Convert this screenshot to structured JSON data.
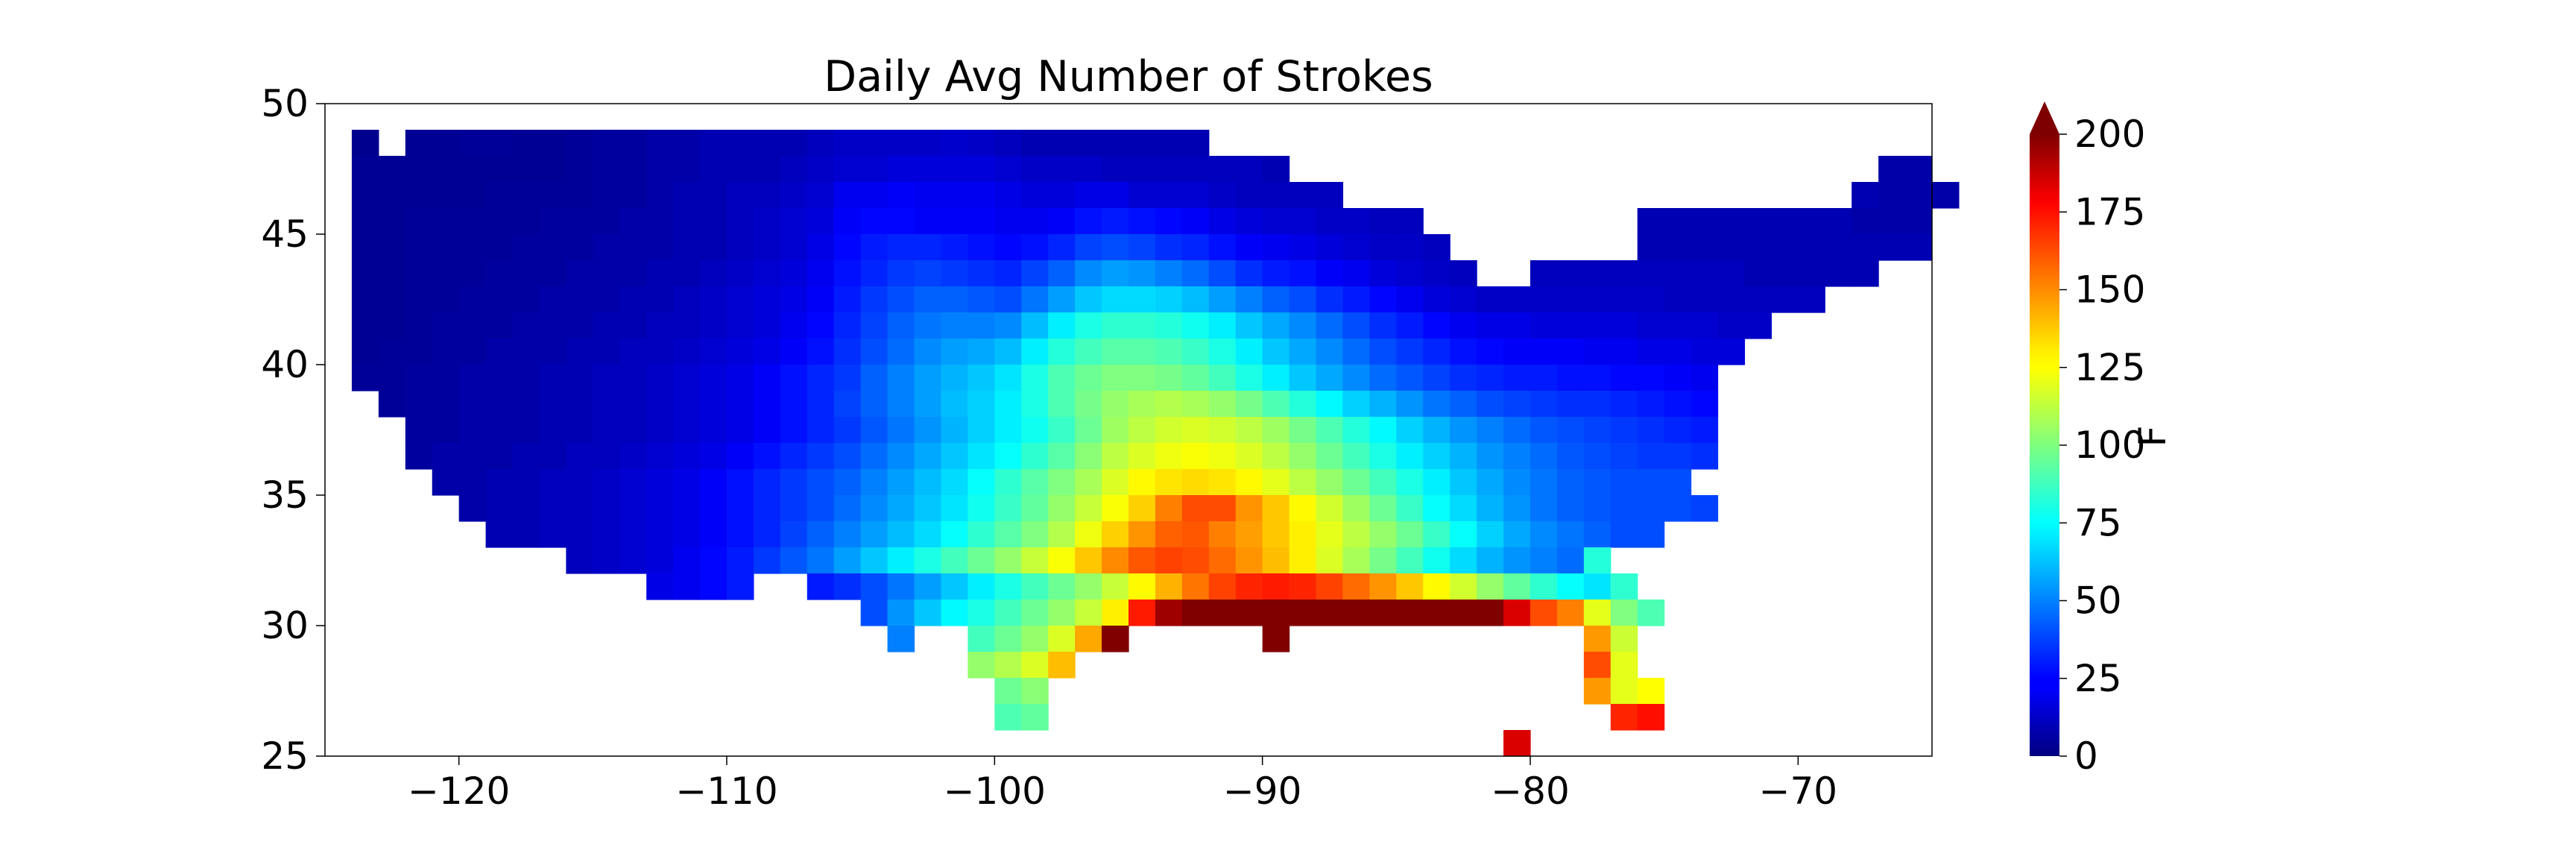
{
  "chart_data": {
    "type": "heatmap",
    "title": "Daily Avg Number of Strokes",
    "xlabel": "",
    "ylabel": "",
    "xlim": [
      -125,
      -65
    ],
    "ylim": [
      25,
      50
    ],
    "x_ticks": [
      -120,
      -110,
      -100,
      -90,
      -80,
      -70
    ],
    "x_tick_labels": [
      "−120",
      "−110",
      "−100",
      "−90",
      "−80",
      "−70"
    ],
    "y_ticks": [
      25,
      30,
      35,
      40,
      45,
      50
    ],
    "y_tick_labels": [
      "25",
      "30",
      "35",
      "40",
      "45",
      "50"
    ],
    "grid": false,
    "cell_size_deg": 1,
    "colorbar": {
      "label": "F",
      "colormap": "jet",
      "range": [
        0,
        200
      ],
      "ticks": [
        0,
        25,
        50,
        75,
        100,
        125,
        150,
        175,
        200
      ],
      "tick_labels": [
        "0",
        "25",
        "50",
        "75",
        "100",
        "125",
        "150",
        "175",
        "200"
      ],
      "extend": "max"
    },
    "rows": [
      {
        "lat": 48.5,
        "lon_start": -124,
        "values": [
          3,
          null,
          4,
          4,
          5,
          5,
          4,
          4,
          5,
          6,
          6,
          8,
          8,
          10,
          10,
          10,
          10,
          12,
          14,
          14,
          14,
          14,
          15,
          14,
          12,
          10,
          10,
          10,
          10,
          10,
          10,
          10
        ]
      },
      {
        "lat": 47.5,
        "lon_start": -124,
        "values": [
          4,
          4,
          4,
          4,
          4,
          4,
          4,
          4,
          5,
          6,
          6,
          8,
          8,
          10,
          10,
          10,
          12,
          14,
          16,
          16,
          18,
          18,
          18,
          18,
          16,
          14,
          14,
          14,
          12,
          12,
          12,
          12,
          12,
          12,
          10,
          null,
          null,
          null,
          null,
          null,
          null,
          null,
          null,
          null,
          null,
          null,
          null,
          null,
          null,
          null,
          null,
          null,
          null,
          null,
          null,
          null,
          null,
          8,
          8
        ]
      },
      {
        "lat": 46.5,
        "lon_start": -124,
        "values": [
          4,
          4,
          4,
          4,
          4,
          5,
          5,
          5,
          5,
          6,
          6,
          8,
          10,
          10,
          12,
          12,
          14,
          16,
          22,
          22,
          24,
          22,
          22,
          22,
          20,
          18,
          18,
          20,
          20,
          16,
          16,
          16,
          14,
          12,
          12,
          12,
          12,
          null,
          null,
          null,
          null,
          null,
          null,
          null,
          null,
          null,
          null,
          null,
          null,
          null,
          null,
          null,
          null,
          null,
          null,
          null,
          10,
          8,
          8,
          8
        ]
      },
      {
        "lat": 45.5,
        "lon_start": -124,
        "values": [
          4,
          4,
          5,
          5,
          5,
          5,
          5,
          6,
          6,
          6,
          8,
          8,
          10,
          10,
          12,
          14,
          16,
          18,
          24,
          26,
          26,
          24,
          24,
          24,
          22,
          22,
          24,
          28,
          30,
          28,
          26,
          24,
          20,
          18,
          16,
          16,
          14,
          14,
          12,
          12,
          null,
          null,
          null,
          null,
          null,
          null,
          null,
          null,
          10,
          10,
          10,
          10,
          10,
          10,
          10,
          10,
          8,
          8,
          8
        ]
      },
      {
        "lat": 44.5,
        "lon_start": -124,
        "values": [
          4,
          4,
          5,
          5,
          5,
          5,
          6,
          6,
          6,
          8,
          8,
          8,
          10,
          10,
          12,
          14,
          16,
          20,
          26,
          30,
          32,
          32,
          30,
          28,
          26,
          28,
          32,
          38,
          40,
          38,
          34,
          32,
          28,
          24,
          22,
          20,
          18,
          16,
          14,
          14,
          12,
          null,
          null,
          null,
          null,
          null,
          null,
          null,
          10,
          10,
          10,
          10,
          10,
          10,
          10,
          10,
          10,
          10,
          10
        ]
      },
      {
        "lat": 43.5,
        "lon_start": -124,
        "values": [
          4,
          4,
          5,
          5,
          5,
          6,
          6,
          6,
          8,
          8,
          8,
          10,
          10,
          12,
          14,
          16,
          18,
          22,
          28,
          32,
          36,
          38,
          36,
          34,
          32,
          38,
          44,
          52,
          56,
          54,
          50,
          46,
          40,
          34,
          30,
          28,
          24,
          22,
          18,
          16,
          14,
          12,
          null,
          null,
          12,
          12,
          12,
          12,
          12,
          12,
          12,
          12,
          10,
          10,
          10,
          10,
          10
        ]
      },
      {
        "lat": 42.5,
        "lon_start": -124,
        "values": [
          4,
          4,
          5,
          5,
          6,
          6,
          6,
          8,
          8,
          8,
          10,
          10,
          12,
          14,
          16,
          18,
          20,
          24,
          30,
          36,
          40,
          44,
          44,
          42,
          40,
          48,
          56,
          64,
          68,
          68,
          66,
          62,
          56,
          50,
          44,
          40,
          34,
          30,
          26,
          22,
          18,
          16,
          14,
          14,
          14,
          14,
          14,
          14,
          14,
          12,
          12,
          12,
          12,
          12,
          12
        ]
      },
      {
        "lat": 41.5,
        "lon_start": -124,
        "values": [
          4,
          4,
          5,
          6,
          6,
          6,
          8,
          8,
          8,
          10,
          10,
          12,
          12,
          14,
          16,
          18,
          22,
          26,
          32,
          38,
          44,
          48,
          50,
          50,
          52,
          62,
          72,
          80,
          84,
          84,
          82,
          78,
          72,
          64,
          58,
          52,
          46,
          40,
          34,
          30,
          26,
          22,
          20,
          20,
          18,
          18,
          18,
          18,
          16,
          16,
          16,
          14,
          14
        ]
      },
      {
        "lat": 40.5,
        "lon_start": -124,
        "values": [
          4,
          5,
          5,
          6,
          6,
          8,
          8,
          8,
          10,
          10,
          12,
          12,
          14,
          16,
          18,
          20,
          24,
          28,
          34,
          40,
          46,
          52,
          56,
          58,
          62,
          72,
          82,
          88,
          92,
          92,
          90,
          86,
          80,
          72,
          64,
          58,
          52,
          46,
          40,
          36,
          32,
          28,
          26,
          24,
          24,
          24,
          22,
          22,
          20,
          20,
          18,
          18
        ]
      },
      {
        "lat": 39.5,
        "lon_start": -124,
        "values": [
          5,
          5,
          6,
          6,
          8,
          8,
          8,
          10,
          10,
          12,
          12,
          14,
          16,
          18,
          20,
          24,
          28,
          32,
          36,
          44,
          50,
          56,
          60,
          64,
          70,
          80,
          90,
          96,
          100,
          100,
          98,
          94,
          88,
          80,
          72,
          64,
          58,
          52,
          46,
          42,
          38,
          34,
          32,
          30,
          30,
          28,
          28,
          26,
          26,
          24,
          22
        ]
      },
      {
        "lat": 38.5,
        "lon_start": -123,
        "values": [
          5,
          6,
          6,
          8,
          8,
          8,
          10,
          10,
          12,
          12,
          14,
          16,
          18,
          20,
          24,
          28,
          32,
          38,
          44,
          50,
          56,
          62,
          66,
          72,
          80,
          90,
          98,
          104,
          108,
          110,
          108,
          104,
          98,
          90,
          82,
          74,
          66,
          60,
          54,
          48,
          44,
          40,
          38,
          36,
          34,
          34,
          32,
          30,
          28,
          26
        ]
      },
      {
        "lat": 37.5,
        "lon_start": -122,
        "values": [
          6,
          6,
          8,
          8,
          8,
          10,
          10,
          12,
          12,
          14,
          16,
          18,
          20,
          24,
          28,
          32,
          36,
          42,
          48,
          54,
          60,
          66,
          72,
          78,
          86,
          96,
          106,
          112,
          116,
          118,
          116,
          112,
          106,
          98,
          90,
          82,
          74,
          66,
          60,
          54,
          50,
          46,
          42,
          40,
          38,
          36,
          34,
          32,
          30
        ]
      },
      {
        "lat": 36.5,
        "lon_start": -122,
        "values": [
          6,
          8,
          8,
          8,
          10,
          10,
          12,
          12,
          14,
          16,
          18,
          20,
          24,
          28,
          32,
          36,
          40,
          46,
          52,
          58,
          64,
          70,
          76,
          84,
          92,
          102,
          112,
          118,
          122,
          124,
          122,
          118,
          112,
          104,
          96,
          88,
          80,
          72,
          66,
          60,
          54,
          50,
          46,
          42,
          40,
          38,
          36,
          36,
          34
        ]
      },
      {
        "lat": 35.5,
        "lon_start": -121,
        "values": [
          8,
          8,
          10,
          10,
          12,
          12,
          14,
          16,
          18,
          20,
          24,
          28,
          32,
          36,
          40,
          44,
          50,
          56,
          62,
          68,
          76,
          84,
          92,
          100,
          108,
          118,
          126,
          130,
          132,
          130,
          126,
          120,
          112,
          104,
          96,
          88,
          80,
          72,
          64,
          58,
          52,
          48,
          44,
          42,
          40,
          40,
          40
        ]
      },
      {
        "lat": 34.5,
        "lon_start": -120,
        "values": [
          8,
          10,
          10,
          12,
          12,
          14,
          16,
          18,
          20,
          24,
          28,
          32,
          36,
          40,
          46,
          52,
          58,
          64,
          70,
          78,
          86,
          94,
          104,
          114,
          124,
          134,
          150,
          160,
          160,
          146,
          136,
          126,
          116,
          106,
          96,
          86,
          76,
          68,
          60,
          54,
          48,
          44,
          42,
          40,
          40,
          40,
          38
        ]
      },
      {
        "lat": 33.5,
        "lon_start": -119,
        "values": [
          10,
          10,
          12,
          12,
          14,
          16,
          18,
          20,
          24,
          28,
          32,
          38,
          44,
          50,
          56,
          62,
          68,
          76,
          84,
          92,
          100,
          110,
          122,
          134,
          146,
          156,
          158,
          150,
          144,
          136,
          128,
          120,
          112,
          104,
          96,
          86,
          76,
          66,
          58,
          52,
          48,
          44,
          40,
          40
        ]
      },
      {
        "lat": 32.5,
        "lon_start": -116,
        "values": [
          12,
          14,
          16,
          18,
          22,
          26,
          30,
          36,
          42,
          48,
          56,
          64,
          72,
          80,
          88,
          96,
          104,
          114,
          124,
          136,
          148,
          158,
          162,
          160,
          154,
          146,
          138,
          128,
          118,
          108,
          98,
          88,
          78,
          68,
          60,
          54,
          50,
          46,
          82
        ]
      },
      {
        "lat": 31.5,
        "lon_start": -113,
        "values": [
          20,
          22,
          26,
          30,
          null,
          null,
          30,
          34,
          40,
          48,
          56,
          64,
          72,
          80,
          88,
          96,
          104,
          114,
          126,
          140,
          152,
          162,
          168,
          170,
          168,
          162,
          154,
          146,
          136,
          126,
          116,
          104,
          94,
          84,
          76,
          70,
          84
        ]
      },
      {
        "lat": 30.5,
        "lon_start": -105,
        "values": [
          40,
          54,
          64,
          74,
          80,
          88,
          96,
          104,
          114,
          128,
          170,
          194,
          210,
          215,
          220,
          215,
          210,
          205,
          200,
          205,
          210,
          212,
          210,
          200,
          182,
          160,
          150,
          120,
          100,
          90
        ]
      },
      {
        "lat": 29.5,
        "lon_start": -104,
        "values": [
          50,
          null,
          null,
          88,
          96,
          104,
          118,
          142,
          205,
          null,
          null,
          null,
          null,
          null,
          210,
          null,
          null,
          null,
          null,
          null,
          null,
          null,
          null,
          null,
          null,
          null,
          145,
          115
        ]
      },
      {
        "lat": 28.5,
        "lon_start": -101,
        "values": [
          104,
          110,
          118,
          138,
          null,
          null,
          null,
          null,
          null,
          null,
          null,
          null,
          null,
          null,
          null,
          null,
          null,
          null,
          null,
          null,
          null,
          null,
          null,
          160,
          120
        ]
      },
      {
        "lat": 27.5,
        "lon_start": -100,
        "values": [
          96,
          102,
          null,
          null,
          null,
          null,
          null,
          null,
          null,
          null,
          null,
          null,
          null,
          null,
          null,
          null,
          null,
          null,
          null,
          null,
          null,
          null,
          145,
          120,
          125
        ]
      },
      {
        "lat": 26.5,
        "lon_start": -100,
        "values": [
          90,
          94,
          null,
          null,
          null,
          null,
          null,
          null,
          null,
          null,
          null,
          null,
          null,
          null,
          null,
          null,
          null,
          null,
          null,
          null,
          null,
          null,
          null,
          168,
          172
        ]
      },
      {
        "lat": 25.5,
        "lon_start": -81,
        "values": [
          182
        ]
      }
    ]
  }
}
